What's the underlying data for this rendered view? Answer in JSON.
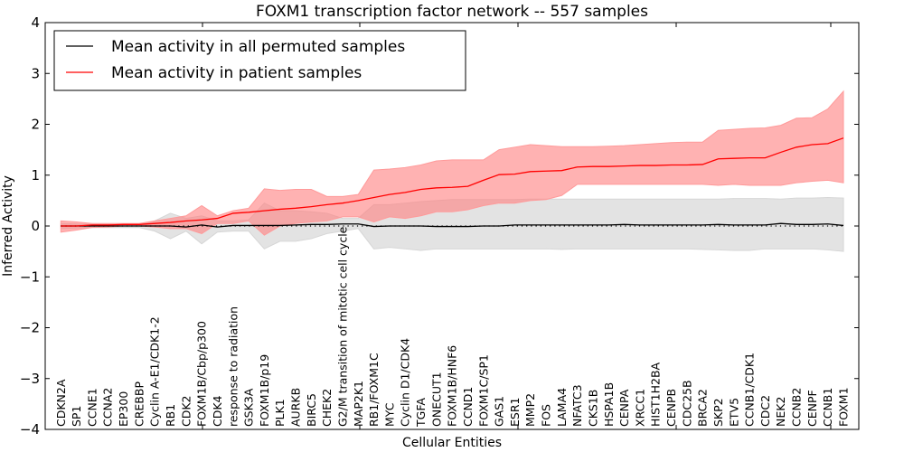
{
  "chart_data": {
    "type": "line",
    "title": "FOXM1 transcription factor network -- 557 samples",
    "xlabel": "Cellular Entities",
    "ylabel": "Inferred Activity",
    "ylim": [
      -4,
      4
    ],
    "yticks": [
      -4,
      -3,
      -2,
      -1,
      0,
      1,
      2,
      3,
      4
    ],
    "ytick_labels": [
      "−4",
      "−3",
      "−2",
      "−1",
      "0",
      "1",
      "2",
      "3",
      "4"
    ],
    "grid": false,
    "legend_position": "top-left",
    "zero_reference": "dotted",
    "categories": [
      "CDKN2A",
      "SP1",
      "CCNE1",
      "CCNA2",
      "EP300",
      "CREBBP",
      "Cyclin A-E1/CDK1-2",
      "RB1",
      "CDK2",
      "FOXM1B/Cbp/p300",
      "CDK4",
      "response to radiation",
      "GSK3A",
      "FOXM1B/p19",
      "PLK1",
      "AURKB",
      "BIRC5",
      "CHEK2",
      "G2/M transition of mitotic cell cycle",
      "MAP2K1",
      "RB1/FOXM1C",
      "MYC",
      "Cyclin D1/CDK4",
      "TGFA",
      "ONECUT1",
      "FOXM1B/HNF6",
      "CCND1",
      "FOXM1C/SP1",
      "GAS1",
      "ESR1",
      "MMP2",
      "FOS",
      "LAMA4",
      "NFATC3",
      "CKS1B",
      "HSPA1B",
      "CENPA",
      "XRCC1",
      "HIST1H2BA",
      "CENPB",
      "CDC25B",
      "BRCA2",
      "SKP2",
      "ETV5",
      "CCNB1/CDK1",
      "CDC2",
      "NEK2",
      "CCNB2",
      "CENPF",
      "CCNB1",
      "FOXM1"
    ],
    "series": [
      {
        "name": "Mean activity in all permuted samples",
        "color": "#000000",
        "band_color": "#e3e3e3",
        "values": [
          0.0,
          0.0,
          0.0,
          0.0,
          0.0,
          0.0,
          0.0,
          0.0,
          -0.02,
          0.02,
          -0.02,
          0.01,
          0.01,
          0.01,
          0.01,
          0.02,
          0.03,
          0.03,
          0.04,
          0.04,
          -0.01,
          0.0,
          0.0,
          0.0,
          -0.01,
          -0.01,
          -0.01,
          0.0,
          0.0,
          0.02,
          0.02,
          0.02,
          0.02,
          0.02,
          0.02,
          0.02,
          0.03,
          0.02,
          0.02,
          0.02,
          0.02,
          0.02,
          0.03,
          0.02,
          0.02,
          0.02,
          0.05,
          0.03,
          0.03,
          0.04,
          0.01
        ],
        "upper": [
          0.05,
          0.04,
          0.03,
          0.03,
          0.03,
          0.03,
          0.1,
          0.25,
          0.15,
          0.2,
          0.1,
          0.1,
          0.12,
          0.45,
          0.3,
          0.3,
          0.28,
          0.25,
          0.15,
          0.15,
          0.42,
          0.42,
          0.45,
          0.48,
          0.5,
          0.52,
          0.52,
          0.52,
          0.52,
          0.52,
          0.53,
          0.53,
          0.53,
          0.53,
          0.53,
          0.53,
          0.53,
          0.53,
          0.53,
          0.53,
          0.53,
          0.53,
          0.53,
          0.54,
          0.54,
          0.54,
          0.53,
          0.55,
          0.55,
          0.56,
          0.55
        ],
        "lower": [
          -0.05,
          -0.04,
          -0.03,
          -0.03,
          -0.03,
          -0.03,
          -0.1,
          -0.25,
          -0.1,
          -0.35,
          -0.12,
          -0.1,
          -0.1,
          -0.45,
          -0.3,
          -0.3,
          -0.25,
          -0.15,
          -0.1,
          -0.05,
          -0.45,
          -0.42,
          -0.45,
          -0.48,
          -0.45,
          -0.45,
          -0.45,
          -0.45,
          -0.45,
          -0.45,
          -0.45,
          -0.45,
          -0.46,
          -0.45,
          -0.45,
          -0.45,
          -0.45,
          -0.45,
          -0.45,
          -0.45,
          -0.45,
          -0.46,
          -0.47,
          -0.48,
          -0.48,
          -0.45,
          -0.45,
          -0.45,
          -0.45,
          -0.47,
          -0.5
        ]
      },
      {
        "name": "Mean activity in patient samples",
        "color": "#ff0000",
        "band_color": "#ff7f7f",
        "values": [
          0.0,
          0.0,
          0.02,
          0.02,
          0.03,
          0.03,
          0.05,
          0.07,
          0.1,
          0.12,
          0.15,
          0.25,
          0.27,
          0.3,
          0.33,
          0.35,
          0.38,
          0.42,
          0.45,
          0.5,
          0.56,
          0.62,
          0.66,
          0.72,
          0.75,
          0.76,
          0.78,
          0.9,
          1.01,
          1.02,
          1.07,
          1.08,
          1.09,
          1.16,
          1.17,
          1.17,
          1.18,
          1.19,
          1.19,
          1.2,
          1.2,
          1.21,
          1.32,
          1.33,
          1.34,
          1.34,
          1.45,
          1.55,
          1.6,
          1.62,
          1.73
        ],
        "upper": [
          0.1,
          0.08,
          0.05,
          0.05,
          0.05,
          0.05,
          0.1,
          0.15,
          0.2,
          0.4,
          0.2,
          0.3,
          0.35,
          0.73,
          0.7,
          0.72,
          0.72,
          0.58,
          0.58,
          0.62,
          1.1,
          1.12,
          1.15,
          1.2,
          1.28,
          1.3,
          1.3,
          1.3,
          1.5,
          1.55,
          1.6,
          1.58,
          1.56,
          1.56,
          1.56,
          1.57,
          1.58,
          1.6,
          1.62,
          1.64,
          1.65,
          1.65,
          1.88,
          1.9,
          1.92,
          1.93,
          1.98,
          2.12,
          2.13,
          2.3,
          2.65
        ],
        "lower": [
          -0.12,
          -0.08,
          -0.03,
          -0.02,
          0.0,
          0.0,
          -0.02,
          -0.05,
          -0.05,
          -0.15,
          0.05,
          0.05,
          0.1,
          -0.18,
          0.0,
          0.05,
          0.08,
          0.1,
          0.18,
          0.18,
          0.08,
          0.18,
          0.15,
          0.2,
          0.28,
          0.28,
          0.32,
          0.4,
          0.45,
          0.45,
          0.5,
          0.52,
          0.6,
          0.82,
          0.82,
          0.82,
          0.82,
          0.82,
          0.82,
          0.82,
          0.82,
          0.82,
          0.8,
          0.82,
          0.8,
          0.8,
          0.8,
          0.85,
          0.88,
          0.9,
          0.85
        ]
      }
    ]
  }
}
